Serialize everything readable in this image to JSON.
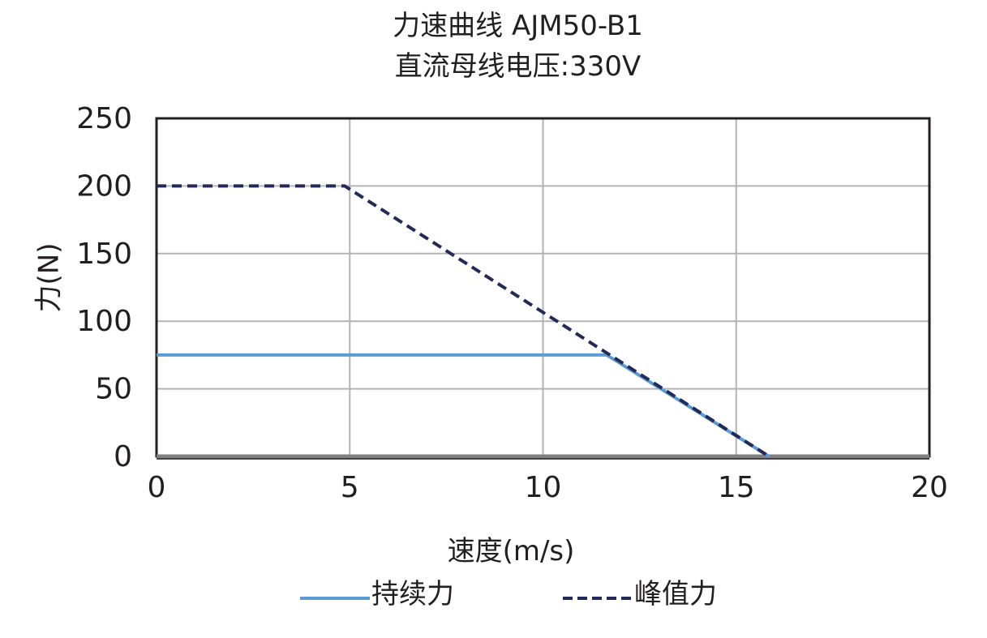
{
  "chart_data": {
    "type": "line",
    "title": "力速曲线 AJM50-B1",
    "subtitle": "直流母线电压:330V",
    "xlabel": "速度(m/s)",
    "ylabel": "力(N)",
    "xlim": [
      0,
      20
    ],
    "ylim": [
      0,
      250
    ],
    "xticks": [
      0,
      5,
      10,
      15,
      20
    ],
    "yticks": [
      0,
      50,
      100,
      150,
      200,
      250
    ],
    "grid": true,
    "legend_position": "bottom",
    "series": [
      {
        "name": "持续力",
        "style": "solid",
        "color": "#5b9bd5",
        "x": [
          0,
          11.65,
          15.85
        ],
        "y": [
          75,
          75,
          0
        ]
      },
      {
        "name": "峰值力",
        "style": "dashed",
        "color": "#232a55",
        "x": [
          0,
          4.87,
          15.85
        ],
        "y": [
          200,
          200,
          0
        ]
      }
    ]
  },
  "labels": {
    "title": "力速曲线 AJM50-B1",
    "subtitle": "直流母线电压:330V",
    "xlabel": "速度(m/s)",
    "ylabel": "力(N)",
    "legend_continuous": "持续力",
    "legend_peak": "峰值力"
  }
}
